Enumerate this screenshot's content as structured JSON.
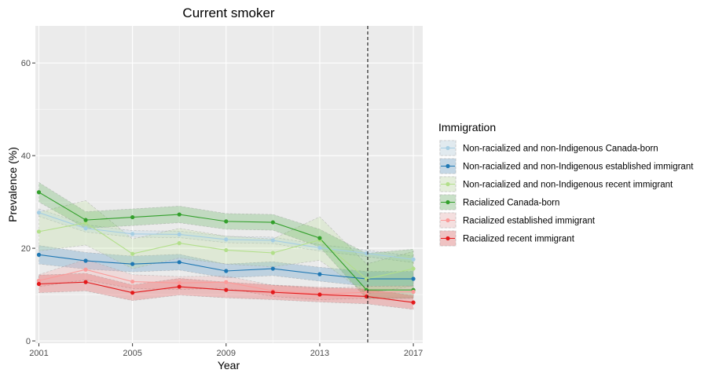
{
  "chart_data": {
    "type": "line",
    "title": "Current smoker",
    "xlabel": "Year",
    "ylabel": "Prevalence (%)",
    "xlim": [
      2000.85,
      2017.4
    ],
    "ylim": [
      -0.5,
      68
    ],
    "x_ticks": [
      2001,
      2005,
      2009,
      2013,
      2017
    ],
    "y_ticks": [
      0,
      20,
      40,
      60
    ],
    "grid": true,
    "reference_line_x": 2015.05,
    "legend": {
      "title": "Immigration",
      "position": "right"
    },
    "x": [
      2001,
      2003,
      2005,
      2007,
      2009,
      2011,
      2013,
      2015,
      2017
    ],
    "series": [
      {
        "name": "Non-racialized and non-Indigenous Canada-born",
        "color": "#a6cee3",
        "values": [
          27.7,
          24.3,
          23.1,
          23.0,
          21.9,
          21.7,
          20.1,
          18.9,
          17.6
        ],
        "lower": [
          26.9,
          23.5,
          22.4,
          22.3,
          21.2,
          21.0,
          19.4,
          18.2,
          16.9
        ],
        "upper": [
          28.5,
          25.1,
          23.8,
          23.7,
          22.6,
          22.4,
          20.8,
          19.6,
          18.3
        ]
      },
      {
        "name": "Non-racialized and non-Indigenous established immigrant",
        "color": "#1f78b4",
        "values": [
          18.6,
          17.3,
          16.6,
          17.0,
          15.1,
          15.6,
          14.4,
          13.4,
          13.4
        ],
        "lower": [
          16.6,
          15.5,
          14.9,
          15.3,
          13.6,
          14.1,
          12.9,
          11.8,
          11.8
        ],
        "upper": [
          20.6,
          19.1,
          18.3,
          18.7,
          16.6,
          17.1,
          15.9,
          15.0,
          15.0
        ]
      },
      {
        "name": "Non-racialized and non-Indigenous recent immigrant",
        "color": "#b2df8a",
        "values": [
          23.6,
          25.5,
          18.8,
          21.1,
          19.6,
          19.0,
          21.8,
          13.4,
          15.6
        ],
        "lower": [
          19.4,
          20.7,
          15.6,
          17.9,
          16.6,
          16.0,
          17.4,
          10.2,
          11.9
        ],
        "upper": [
          27.8,
          30.3,
          22.0,
          24.3,
          22.6,
          22.0,
          26.8,
          16.6,
          19.3
        ]
      },
      {
        "name": "Racialized Canada-born",
        "color": "#33a02c",
        "values": [
          32.1,
          26.1,
          26.7,
          27.3,
          25.8,
          25.6,
          22.2,
          11.0,
          11.0
        ],
        "lower": [
          30.0,
          24.3,
          24.9,
          25.5,
          24.1,
          23.9,
          20.3,
          9.1,
          9.2
        ],
        "upper": [
          34.2,
          27.9,
          28.5,
          29.1,
          27.5,
          27.3,
          24.1,
          18.9,
          19.8
        ]
      },
      {
        "name": "Racialized established immigrant",
        "color": "#fb9a99",
        "values": [
          13.0,
          15.4,
          12.8,
          12.5,
          12.7,
          10.8,
          10.1,
          10.5,
          10.6
        ],
        "lower": [
          11.7,
          13.2,
          11.3,
          11.1,
          11.4,
          9.6,
          8.9,
          9.2,
          9.3
        ],
        "upper": [
          14.3,
          17.6,
          14.3,
          13.9,
          14.0,
          12.0,
          11.3,
          11.8,
          11.9
        ]
      },
      {
        "name": "Racialized recent immigrant",
        "color": "#e31a1c",
        "values": [
          12.3,
          12.7,
          10.4,
          11.7,
          11.0,
          10.5,
          10.0,
          9.6,
          8.3
        ],
        "lower": [
          10.4,
          10.8,
          8.7,
          9.9,
          9.3,
          8.9,
          8.4,
          8.0,
          6.8
        ],
        "upper": [
          14.2,
          14.6,
          12.1,
          13.5,
          12.7,
          12.1,
          11.6,
          11.2,
          9.8
        ]
      }
    ]
  }
}
